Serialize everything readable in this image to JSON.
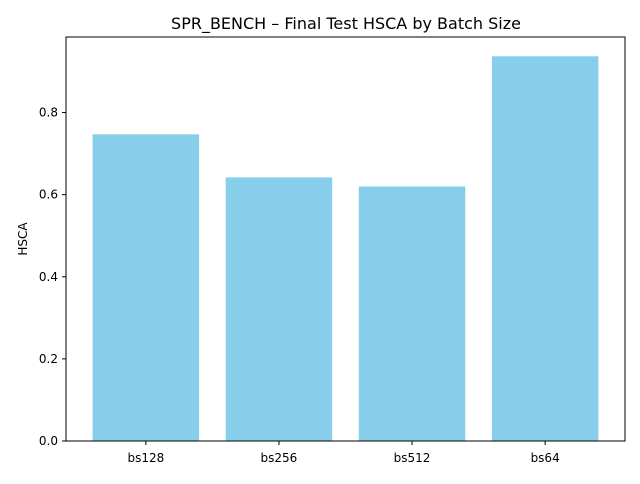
{
  "chart_data": {
    "type": "bar",
    "title": "SPR_BENCH – Final Test HSCA by Batch Size",
    "xlabel": "",
    "ylabel": "HSCA",
    "categories": [
      "bs128",
      "bs256",
      "bs512",
      "bs64"
    ],
    "values": [
      0.747,
      0.642,
      0.62,
      0.937
    ],
    "ylim": [
      0,
      0.984
    ],
    "yticks": [
      0.0,
      0.2,
      0.4,
      0.6,
      0.8
    ],
    "ytick_labels": [
      "0.0",
      "0.2",
      "0.4",
      "0.6",
      "0.8"
    ],
    "bar_color": "#87ceeb",
    "grid": false,
    "legend": "none"
  }
}
